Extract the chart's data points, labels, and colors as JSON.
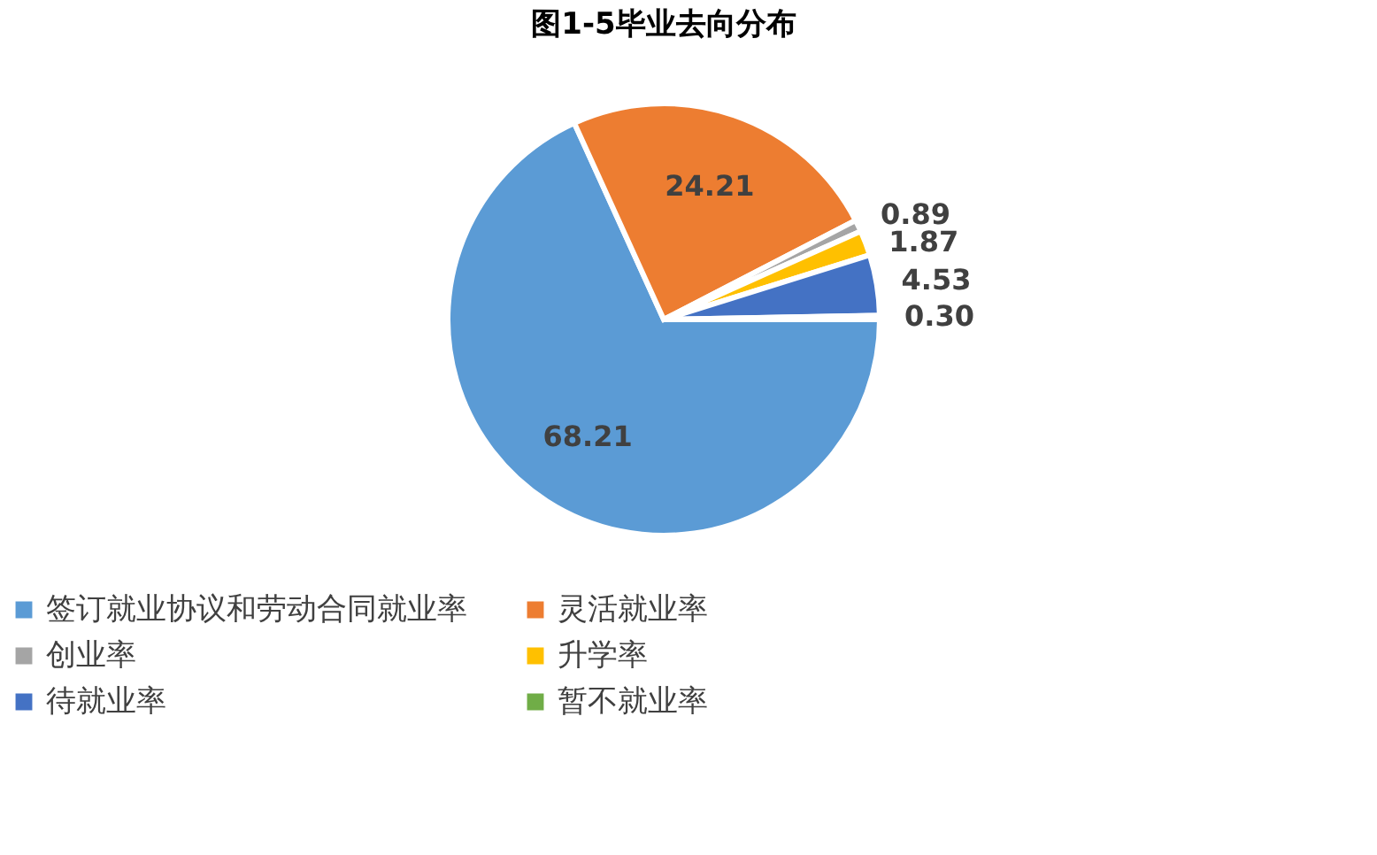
{
  "chart_data": {
    "type": "pie",
    "title": "图1-5毕业去向分布",
    "categories": [
      "签订就业协议和劳动合同就业率",
      "灵活就业率",
      "创业率",
      "升学率",
      "待就业率",
      "暂不就业率"
    ],
    "values": [
      68.21,
      24.21,
      0.89,
      1.87,
      4.53,
      0.3
    ],
    "colors": [
      "#5b9bd5",
      "#ed7d31",
      "#a5a5a5",
      "#ffc000",
      "#4472c4",
      "#70ad47"
    ],
    "value_labels": [
      "68.21",
      "24.21",
      "0.89",
      "1.87",
      "4.53",
      "0.30"
    ],
    "legend": "bottom"
  }
}
